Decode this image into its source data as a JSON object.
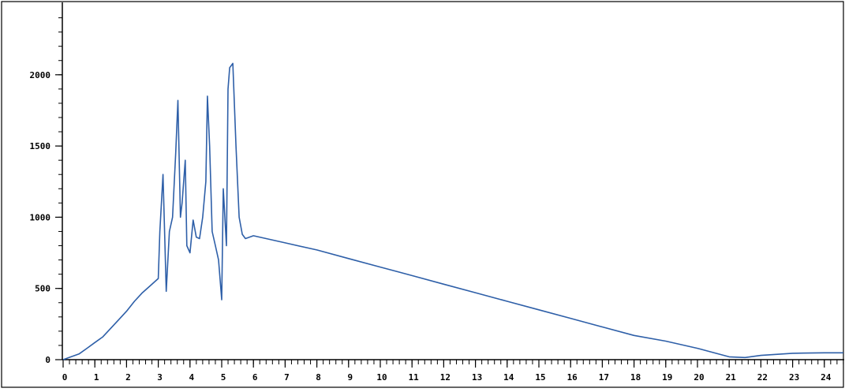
{
  "chart_data": {
    "type": "line",
    "title": "",
    "xlabel": "",
    "ylabel": "",
    "xlim": [
      0,
      24.6
    ],
    "ylim": [
      0,
      2500
    ],
    "x_ticks": [
      "0",
      "1",
      "2",
      "3",
      "4",
      "5",
      "6",
      "7",
      "8",
      "9",
      "10",
      "11",
      "12",
      "13",
      "14",
      "15",
      "16",
      "17",
      "18",
      "19",
      "20",
      "21",
      "22",
      "23",
      "24"
    ],
    "y_ticks": [
      "0",
      "500",
      "1000",
      "1500",
      "2000"
    ],
    "grid": false,
    "legend": "none",
    "series": [
      {
        "color": "#2e5fa8",
        "x": [
          0,
          0.25,
          0.5,
          0.75,
          1,
          1.25,
          1.5,
          1.75,
          2,
          2.25,
          2.5,
          2.75,
          3,
          3.05,
          3.15,
          3.25,
          3.35,
          3.45,
          3.55,
          3.62,
          3.7,
          3.75,
          3.85,
          3.9,
          4.0,
          4.1,
          4.2,
          4.3,
          4.4,
          4.5,
          4.55,
          4.62,
          4.7,
          4.8,
          4.9,
          5.0,
          5.05,
          5.15,
          5.2,
          5.25,
          5.35,
          5.45,
          5.55,
          5.65,
          5.75,
          6,
          7,
          8,
          9,
          10,
          11,
          12,
          13,
          14,
          15,
          16,
          17,
          18,
          19,
          20,
          20.5,
          21,
          21.5,
          22,
          23,
          24,
          24.6
        ],
        "y": [
          0,
          20,
          40,
          80,
          120,
          160,
          220,
          280,
          340,
          410,
          470,
          520,
          570,
          900,
          1300,
          480,
          900,
          1000,
          1450,
          1820,
          1000,
          1100,
          1400,
          800,
          750,
          980,
          860,
          850,
          1000,
          1250,
          1850,
          1500,
          900,
          800,
          700,
          420,
          1200,
          800,
          1900,
          2050,
          2080,
          1500,
          1000,
          880,
          850,
          870,
          820,
          770,
          710,
          650,
          590,
          530,
          470,
          410,
          350,
          290,
          230,
          170,
          130,
          80,
          50,
          20,
          15,
          30,
          45,
          48,
          48
        ]
      }
    ]
  }
}
